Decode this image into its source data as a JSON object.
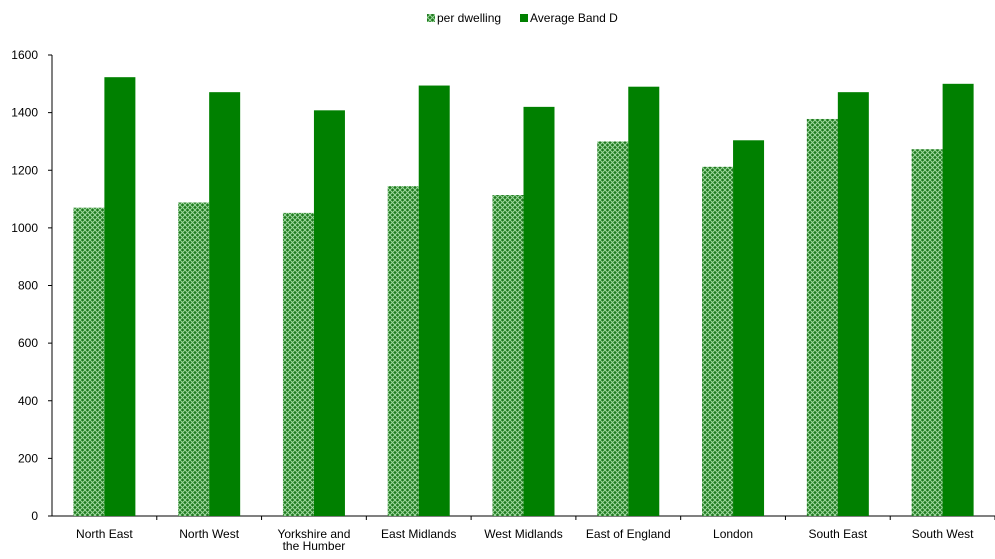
{
  "chart_data": {
    "type": "bar",
    "categories": [
      "North East",
      "North West",
      "Yorkshire and the Humber",
      "East Midlands",
      "West Midlands",
      "East of England",
      "London",
      "South East",
      "South West"
    ],
    "category_label_lines": [
      [
        "North East"
      ],
      [
        "North West"
      ],
      [
        "Yorkshire and",
        "the Humber"
      ],
      [
        "East Midlands"
      ],
      [
        "West Midlands"
      ],
      [
        "East of England"
      ],
      [
        "London"
      ],
      [
        "South East"
      ],
      [
        "South West"
      ]
    ],
    "series": [
      {
        "name": "per dwelling",
        "values": [
          1070,
          1088,
          1052,
          1145,
          1114,
          1300,
          1212,
          1378,
          1273
        ],
        "color": "#2e8b2e",
        "pattern": "diagonal-crosshatch"
      },
      {
        "name": "Average Band D",
        "values": [
          1523,
          1471,
          1408,
          1494,
          1420,
          1490,
          1304,
          1471,
          1500
        ],
        "color": "#008000",
        "pattern": "solid"
      }
    ],
    "ylim": [
      0,
      1600
    ],
    "yticks": [
      0,
      200,
      400,
      600,
      800,
      1000,
      1200,
      1400,
      1600
    ],
    "ytick_labels": [
      "0",
      "200",
      "400",
      "600",
      "800",
      "1000",
      "1200",
      "1400",
      "1600"
    ],
    "title": "",
    "xlabel": "",
    "ylabel": "",
    "grid": false,
    "legend_position": "top-center"
  }
}
